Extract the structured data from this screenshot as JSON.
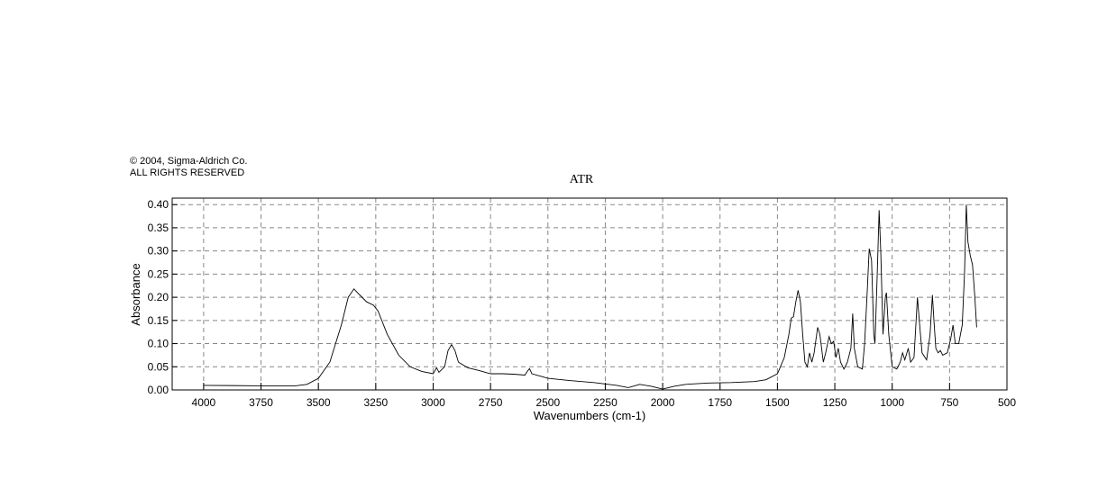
{
  "chart_data": {
    "type": "line",
    "copyright": "© 2004, Sigma-Aldrich Co.",
    "rights": "ALL RIGHTS RESERVED",
    "title": "ATR",
    "x_label": "Wavenumbers (cm-1)",
    "y_label": "Absorbance",
    "color": "#000000",
    "grid": true,
    "xlim": [
      4137,
      500
    ],
    "ylim": [
      0,
      0.414
    ],
    "xticks": [
      4000,
      3750,
      3500,
      3250,
      3000,
      2750,
      2500,
      2250,
      2000,
      1750,
      1500,
      1250,
      1000,
      750,
      500
    ],
    "yticks": [
      {
        "value": 0,
        "label": "0.00"
      },
      0.05,
      {
        "value": 0.1,
        "label": "0.10"
      },
      0.15,
      {
        "value": 0.2,
        "label": "0.20"
      },
      0.25,
      {
        "value": 0.3,
        "label": "0.30"
      },
      0.35,
      {
        "value": 0.4,
        "label": "0.40"
      }
    ],
    "x": [
      4000,
      3750,
      3600,
      3550,
      3500,
      3450,
      3400,
      3370,
      3345,
      3320,
      3290,
      3260,
      3240,
      3200,
      3150,
      3100,
      3050,
      3000,
      2985,
      2975,
      2950,
      2935,
      2920,
      2905,
      2890,
      2850,
      2800,
      2750,
      2700,
      2650,
      2600,
      2590,
      2580,
      2570,
      2500,
      2400,
      2300,
      2200,
      2150,
      2100,
      2050,
      2000,
      1950,
      1900,
      1800,
      1700,
      1600,
      1550,
      1500,
      1470,
      1450,
      1440,
      1430,
      1420,
      1410,
      1400,
      1390,
      1380,
      1370,
      1360,
      1350,
      1340,
      1325,
      1315,
      1300,
      1290,
      1275,
      1265,
      1255,
      1245,
      1235,
      1225,
      1210,
      1195,
      1180,
      1172,
      1165,
      1150,
      1130,
      1120,
      1110,
      1100,
      1090,
      1080,
      1075,
      1065,
      1057,
      1050,
      1040,
      1030,
      1025,
      1015,
      1000,
      980,
      965,
      955,
      945,
      930,
      920,
      905,
      890,
      880,
      870,
      850,
      835,
      825,
      818,
      810,
      800,
      790,
      780,
      760,
      745,
      735,
      725,
      710,
      695,
      685,
      677,
      670,
      660,
      650,
      640,
      632
    ],
    "values": [
      0.01,
      0.009,
      0.009,
      0.012,
      0.025,
      0.06,
      0.14,
      0.2,
      0.218,
      0.205,
      0.19,
      0.183,
      0.17,
      0.12,
      0.075,
      0.05,
      0.04,
      0.035,
      0.048,
      0.038,
      0.05,
      0.085,
      0.098,
      0.085,
      0.06,
      0.048,
      0.042,
      0.035,
      0.035,
      0.034,
      0.032,
      0.04,
      0.046,
      0.035,
      0.025,
      0.02,
      0.016,
      0.01,
      0.005,
      0.012,
      0.008,
      0.002,
      0.008,
      0.012,
      0.015,
      0.016,
      0.018,
      0.022,
      0.035,
      0.07,
      0.12,
      0.155,
      0.158,
      0.19,
      0.215,
      0.19,
      0.12,
      0.06,
      0.05,
      0.08,
      0.06,
      0.08,
      0.135,
      0.12,
      0.06,
      0.08,
      0.115,
      0.1,
      0.105,
      0.07,
      0.09,
      0.06,
      0.045,
      0.06,
      0.09,
      0.165,
      0.09,
      0.05,
      0.045,
      0.1,
      0.2,
      0.305,
      0.28,
      0.12,
      0.1,
      0.25,
      0.388,
      0.3,
      0.12,
      0.2,
      0.21,
      0.12,
      0.05,
      0.045,
      0.06,
      0.08,
      0.065,
      0.09,
      0.06,
      0.07,
      0.2,
      0.14,
      0.08,
      0.065,
      0.12,
      0.205,
      0.15,
      0.09,
      0.08,
      0.085,
      0.075,
      0.08,
      0.11,
      0.14,
      0.1,
      0.1,
      0.14,
      0.25,
      0.4,
      0.32,
      0.29,
      0.27,
      0.2,
      0.135
    ]
  }
}
